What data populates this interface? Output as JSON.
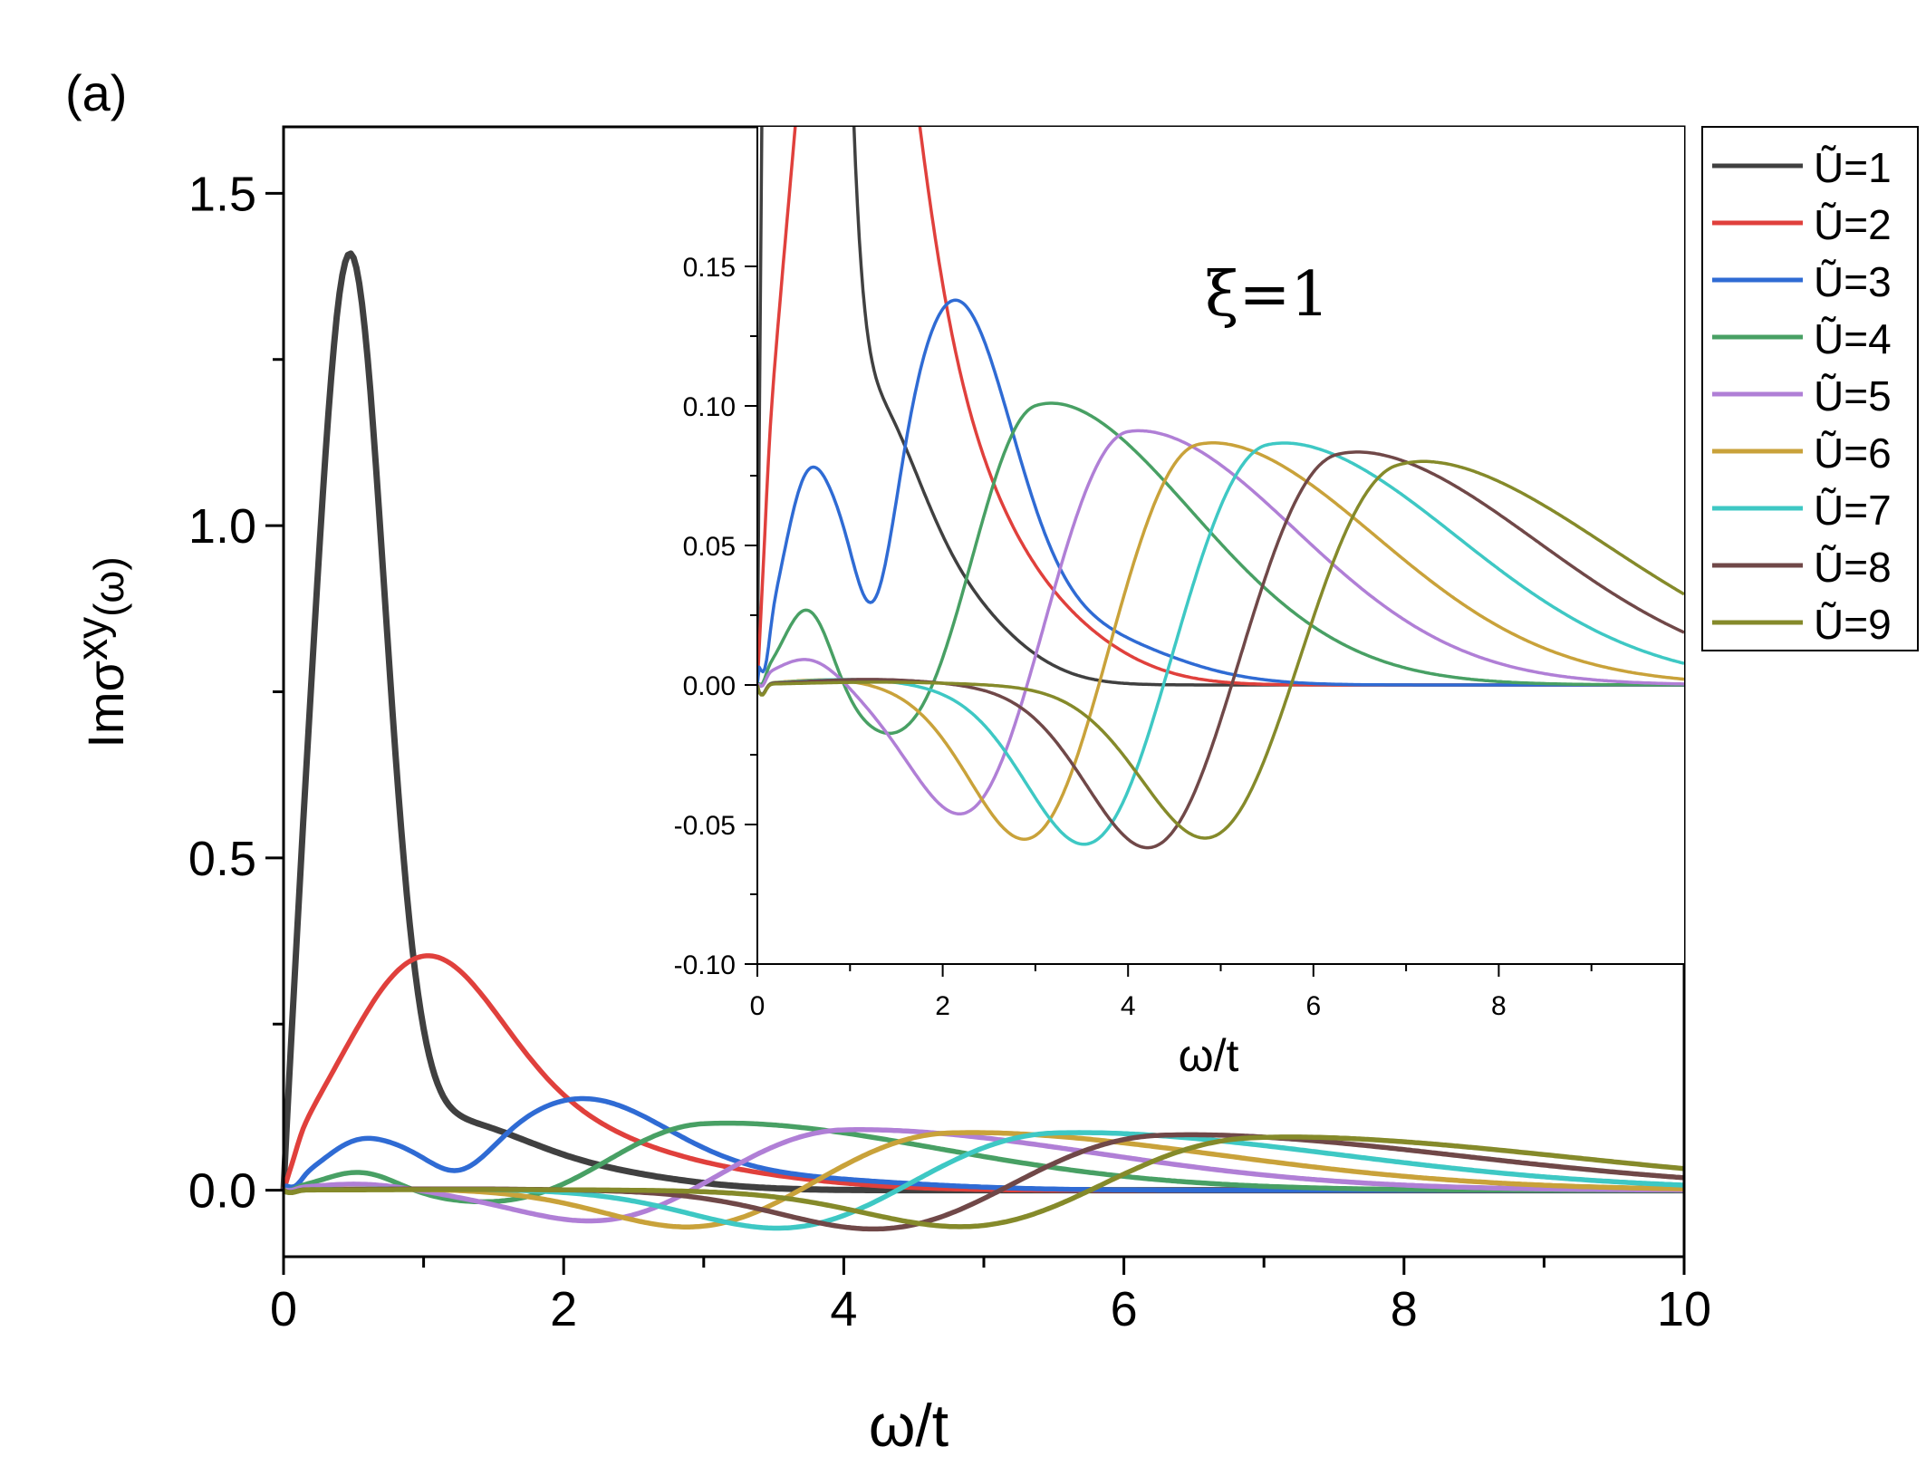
{
  "panel_label": "(a)",
  "chart_data": [
    {
      "type": "line",
      "role": "main",
      "xlabel": "ω/t",
      "ylabel_main": "Imσ",
      "ylabel_sup": "xy",
      "ylabel_tail": "(ω)",
      "xlim": [
        0,
        10
      ],
      "ylim": [
        -0.1,
        1.6
      ],
      "xticks": [
        0,
        2,
        4,
        6,
        8,
        10
      ],
      "xtick_labels": [
        "0",
        "2",
        "4",
        "6",
        "8",
        "10"
      ],
      "yticks": [
        0.0,
        0.5,
        1.0,
        1.5
      ],
      "ytick_labels": [
        "0.0",
        "0.5",
        "1.0",
        "1.5"
      ],
      "grid": false,
      "legend_position": "outside-right",
      "series": [
        {
          "name": "Ũ=1",
          "color": "#404040",
          "peak_x": 0.47,
          "peak_y": 1.445
        },
        {
          "name": "Ũ=2",
          "color": "#e0403c",
          "peak_x": 0.95,
          "peak_y": 0.31
        },
        {
          "name": "Ũ=3",
          "color": "#2f6bd4",
          "peak_x": 2.0,
          "peak_y": 0.135
        },
        {
          "name": "Ũ=4",
          "color": "#48a064",
          "peak_x": 3.0,
          "peak_y": 0.103
        },
        {
          "name": "Ũ=5",
          "color": "#b07fd6",
          "peak_x": 4.0,
          "peak_y": 0.092
        },
        {
          "name": "Ũ=6",
          "color": "#c9a23a",
          "peak_x": 4.75,
          "peak_y": 0.088
        },
        {
          "name": "Ũ=7",
          "color": "#3ec8c4",
          "peak_x": 5.5,
          "peak_y": 0.088
        },
        {
          "name": "Ũ=8",
          "color": "#704848",
          "peak_x": 6.25,
          "peak_y": 0.085
        },
        {
          "name": "Ũ=9",
          "color": "#858a2a",
          "peak_x": 6.9,
          "peak_y": 0.082
        }
      ]
    },
    {
      "type": "line",
      "role": "inset",
      "xlabel": "ω/t",
      "annotation": "ξ=1",
      "xlim": [
        0,
        10
      ],
      "ylim": [
        -0.1,
        0.2
      ],
      "xticks": [
        0,
        2,
        4,
        6,
        8
      ],
      "xtick_labels": [
        "0",
        "2",
        "4",
        "6",
        "8"
      ],
      "yticks": [
        -0.1,
        -0.05,
        0.0,
        0.05,
        0.1,
        0.15
      ],
      "ytick_labels": [
        "-0.10",
        "-0.05",
        "0.00",
        "0.05",
        "0.10",
        "0.15"
      ],
      "grid": false
    }
  ]
}
